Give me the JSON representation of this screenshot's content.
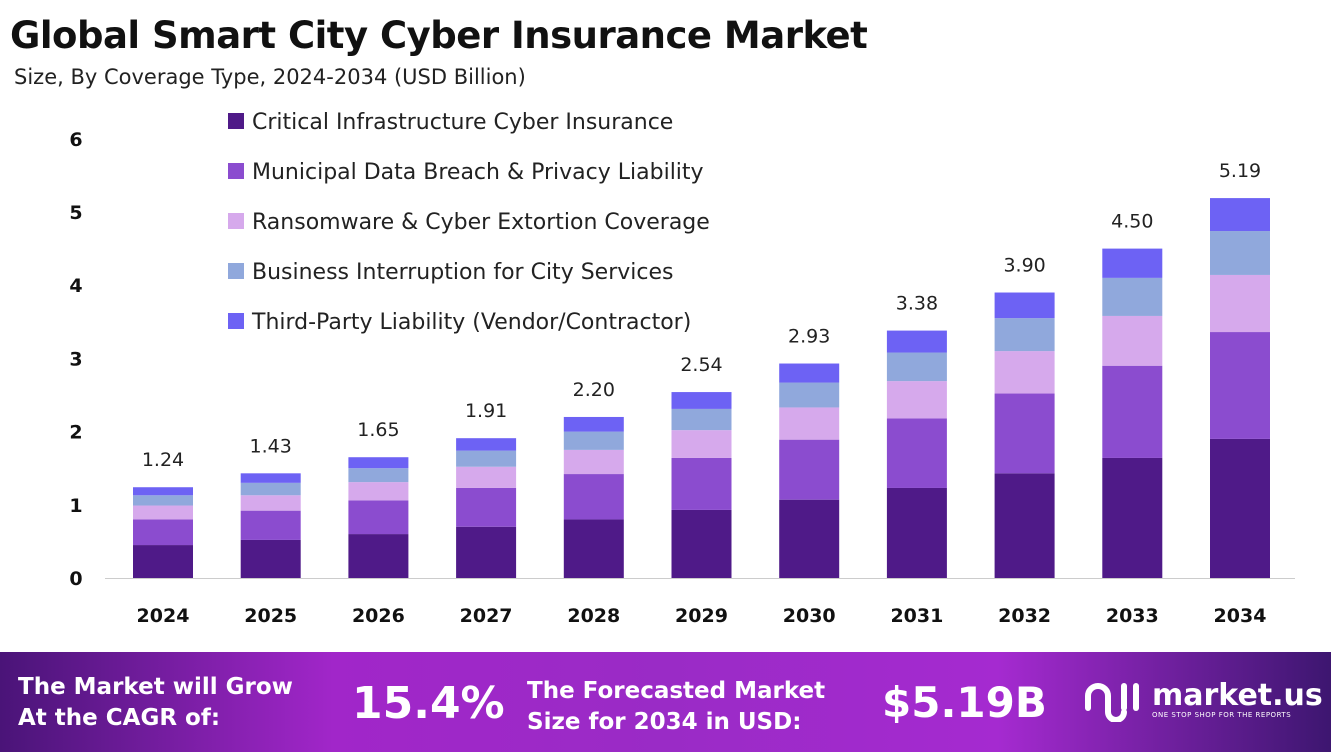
{
  "title": "Global Smart City Cyber Insurance Market",
  "subtitle": "Size, By Coverage Type, 2024-2034 (USD Billion)",
  "chart_data": {
    "type": "bar",
    "stacked": true,
    "categories": [
      "2024",
      "2025",
      "2026",
      "2027",
      "2028",
      "2029",
      "2030",
      "2031",
      "2032",
      "2033",
      "2034"
    ],
    "series": [
      {
        "name": "Critical Infrastructure Cyber Insurance",
        "color": "#4f1a88",
        "values": [
          0.45,
          0.52,
          0.6,
          0.7,
          0.8,
          0.93,
          1.07,
          1.23,
          1.43,
          1.64,
          1.9
        ]
      },
      {
        "name": "Municipal Data Breach & Privacy Liability",
        "color": "#8b4ccf",
        "values": [
          0.35,
          0.4,
          0.46,
          0.53,
          0.62,
          0.71,
          0.82,
          0.95,
          1.09,
          1.26,
          1.46
        ]
      },
      {
        "name": "Ransomware & Cyber Extortion Coverage",
        "color": "#d6a9ec",
        "values": [
          0.19,
          0.21,
          0.25,
          0.29,
          0.33,
          0.38,
          0.44,
          0.51,
          0.58,
          0.68,
          0.78
        ]
      },
      {
        "name": "Business Interruption for City Services",
        "color": "#90a8dc",
        "values": [
          0.14,
          0.17,
          0.19,
          0.22,
          0.25,
          0.29,
          0.34,
          0.39,
          0.45,
          0.52,
          0.6
        ]
      },
      {
        "name": "Third-Party Liability (Vendor/Contractor)",
        "color": "#6d62f4",
        "values": [
          0.11,
          0.13,
          0.15,
          0.17,
          0.2,
          0.23,
          0.26,
          0.3,
          0.35,
          0.4,
          0.45
        ]
      }
    ],
    "totals": [
      "1.24",
      "1.43",
      "1.65",
      "1.91",
      "2.20",
      "2.54",
      "2.93",
      "3.38",
      "3.90",
      "4.50",
      "5.19"
    ],
    "yticks": [
      "0",
      "1",
      "2",
      "3",
      "4",
      "5",
      "6"
    ],
    "ylim": [
      0,
      6
    ],
    "grid": false,
    "legend_position": "top-left"
  },
  "banner": {
    "cagr_label": "The Market will Grow At the CAGR of:",
    "cagr_label_1": "The Market will Grow",
    "cagr_label_2": "At the CAGR of:",
    "cagr_value": "15.4%",
    "forecast_label_1": "The Forecasted Market",
    "forecast_label_2": "Size for 2034 in USD:",
    "forecast_value": "$5.19B",
    "logo_text": "market.us",
    "logo_tagline": "ONE STOP SHOP FOR THE REPORTS"
  }
}
